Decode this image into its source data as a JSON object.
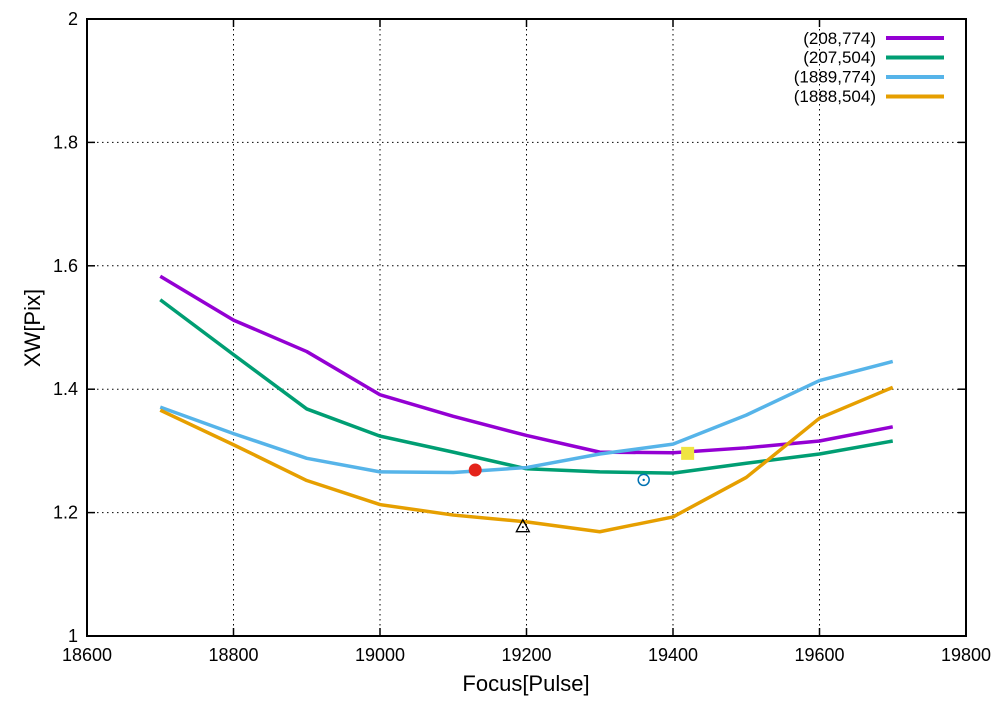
{
  "chart_data": {
    "type": "line",
    "title": "",
    "xlabel": "Focus[Pulse]",
    "ylabel": "XW[Pix]",
    "xlim": [
      18600,
      19800
    ],
    "ylim": [
      1,
      2
    ],
    "x_ticks": [
      18600,
      18800,
      19000,
      19200,
      19400,
      19600,
      19800
    ],
    "x_tick_labels": [
      "18600",
      "18800",
      "19000",
      "19200",
      "19400",
      "19600",
      "19800"
    ],
    "y_ticks": [
      1,
      1.2,
      1.4,
      1.6,
      1.8,
      2
    ],
    "y_tick_labels": [
      "1",
      "1.2",
      "1.4",
      "1.6",
      "1.8",
      "2"
    ],
    "grid": true,
    "legend_position": "top-right",
    "x": [
      18700,
      18800,
      18900,
      19000,
      19100,
      19200,
      19300,
      19400,
      19500,
      19600,
      19700
    ],
    "series": [
      {
        "name": "(208,774)",
        "color": "#9400d3",
        "values": [
          1.583,
          1.512,
          1.461,
          1.391,
          1.356,
          1.325,
          1.298,
          1.297,
          1.305,
          1.316,
          1.339
        ]
      },
      {
        "name": "(207,504)",
        "color": "#009e73",
        "values": [
          1.545,
          1.456,
          1.368,
          1.324,
          1.298,
          1.271,
          1.266,
          1.264,
          1.28,
          1.295,
          1.316
        ]
      },
      {
        "name": "(1889,774)",
        "color": "#56b4e9",
        "values": [
          1.371,
          1.328,
          1.288,
          1.266,
          1.265,
          1.273,
          1.295,
          1.311,
          1.358,
          1.414,
          1.445
        ]
      },
      {
        "name": "(1888,504)",
        "color": "#e69f00",
        "values": [
          1.366,
          1.31,
          1.252,
          1.213,
          1.196,
          1.185,
          1.169,
          1.193,
          1.257,
          1.353,
          1.403
        ]
      }
    ],
    "markers": [
      {
        "shape": "filled-circle",
        "color": "#e4231b",
        "x": 19130,
        "y": 1.269
      },
      {
        "shape": "open-triangle",
        "color": "#000000",
        "x": 19195,
        "y": 1.178
      },
      {
        "shape": "open-circle",
        "color": "#0072b2",
        "x": 19360,
        "y": 1.253
      },
      {
        "shape": "filled-square",
        "color": "#f0e442",
        "x": 19420,
        "y": 1.296
      }
    ]
  }
}
